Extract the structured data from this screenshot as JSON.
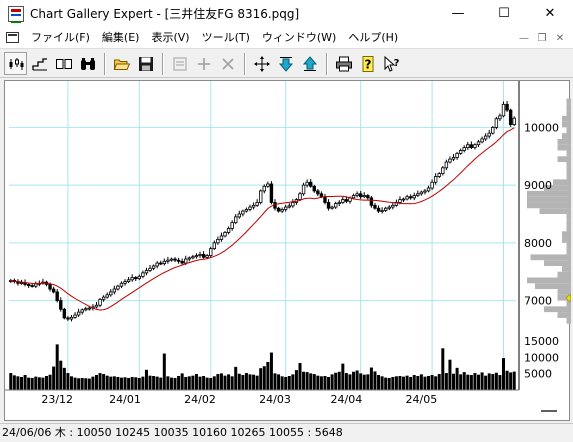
{
  "window": {
    "title": "Chart Gallery Expert - [三井住友FG 8316.pqg]",
    "minimize_glyph": "—",
    "maximize_glyph": "☐",
    "close_glyph": "✕"
  },
  "menu": {
    "items": [
      "ファイル(F)",
      "編集(E)",
      "表示(V)",
      "ツール(T)",
      "ウィンドウ(W)",
      "ヘルプ(H)"
    ],
    "mdi_minimize": "—",
    "mdi_restore": "❐",
    "mdi_close": "✕"
  },
  "toolbar": {
    "buttons": [
      {
        "name": "candlestick-button",
        "icon": "candlestick-icon"
      },
      {
        "name": "step-line-button",
        "icon": "step-line-icon"
      },
      {
        "name": "dual-pane-button",
        "icon": "dual-pane-icon"
      },
      {
        "name": "binoculars-button",
        "icon": "binoculars-icon"
      },
      {
        "name": "open-button",
        "icon": "folder-icon"
      },
      {
        "name": "save-button",
        "icon": "floppy-icon"
      },
      {
        "name": "properties-button",
        "icon": "properties-icon"
      },
      {
        "name": "add-button",
        "icon": "plus-icon"
      },
      {
        "name": "delete-button",
        "icon": "cross-icon"
      },
      {
        "name": "move-button",
        "icon": "move-icon"
      },
      {
        "name": "move-down-button",
        "icon": "arrow-down-icon"
      },
      {
        "name": "move-up-button",
        "icon": "arrow-up-icon"
      },
      {
        "name": "print-button",
        "icon": "printer-icon"
      },
      {
        "name": "help-button",
        "icon": "question-icon"
      },
      {
        "name": "context-help-button",
        "icon": "pointer-question-icon"
      }
    ]
  },
  "status": {
    "text": "24/06/06 木 : 10050 10245 10035 10160  10265 10055 : 5648"
  },
  "colors": {
    "grid": "#a8e6f0",
    "candle": "#000000",
    "ma_line": "#c00000",
    "volume": "#000000",
    "current_marker": "#e6e000"
  },
  "chart_data": {
    "type": "candlestick",
    "price_axis": {
      "ticks": [
        7000,
        8000,
        9000,
        10000
      ],
      "tick_labels": [
        "7000",
        "8000",
        "9000",
        "10000"
      ],
      "ylim": [
        6300,
        10700
      ]
    },
    "volume_axis": {
      "ticks": [
        5000,
        10000,
        15000
      ],
      "tick_labels": [
        "5000",
        "10000",
        "15000"
      ],
      "ylim": [
        0,
        17500
      ]
    },
    "x_ticks": [
      "23/12",
      "24/01",
      "24/02",
      "24/03",
      "24/04",
      "24/05"
    ],
    "series": [
      {
        "kind": "candles",
        "close": [
          7350,
          7330,
          7300,
          7310,
          7280,
          7260,
          7250,
          7290,
          7300,
          7320,
          7280,
          7200,
          7150,
          7000,
          6850,
          6700,
          6680,
          6710,
          6750,
          6800,
          6840,
          6860,
          6870,
          6890,
          6920,
          7020,
          7060,
          7100,
          7150,
          7200,
          7250,
          7300,
          7330,
          7360,
          7400,
          7380,
          7420,
          7480,
          7520,
          7560,
          7600,
          7650,
          7640,
          7680,
          7700,
          7720,
          7700,
          7680,
          7650,
          7720,
          7740,
          7760,
          7780,
          7800,
          7750,
          7780,
          7900,
          8000,
          8060,
          8120,
          8180,
          8250,
          8350,
          8450,
          8500,
          8550,
          8580,
          8620,
          8650,
          8700,
          8900,
          8980,
          9020,
          8700,
          8600,
          8550,
          8580,
          8620,
          8640,
          8700,
          8750,
          8850,
          9000,
          9050,
          8980,
          8900,
          8850,
          8800,
          8700,
          8600,
          8620,
          8680,
          8700,
          8750,
          8720,
          8780,
          8820,
          8850,
          8800,
          8820,
          8780,
          8650,
          8600,
          8550,
          8560,
          8600,
          8620,
          8650,
          8700,
          8750,
          8760,
          8800,
          8780,
          8820,
          8850,
          8880,
          8900,
          8950,
          9050,
          9150,
          9200,
          9300,
          9400,
          9450,
          9480,
          9550,
          9600,
          9650,
          9700,
          9650,
          9700,
          9750,
          9800,
          9850,
          9900,
          10000,
          10150,
          10200,
          10400,
          10300,
          10050,
          10160
        ],
        "volume": [
          5200,
          4500,
          4200,
          4000,
          4600,
          3800,
          3700,
          4100,
          3900,
          3800,
          4300,
          4700,
          7200,
          14000,
          9000,
          6800,
          5200,
          4200,
          3800,
          3600,
          3700,
          3600,
          3500,
          4100,
          4600,
          5200,
          4900,
          4400,
          4100,
          4200,
          4000,
          3800,
          3900,
          3700,
          4000,
          3900,
          3700,
          4100,
          6200,
          4400,
          4300,
          4100,
          3800,
          11200,
          4200,
          3800,
          3700,
          4300,
          5100,
          4000,
          4200,
          4400,
          4900,
          4100,
          4300,
          3800,
          3700,
          4200,
          4900,
          5100,
          4400,
          4800,
          4200,
          7100,
          5000,
          4600,
          5200,
          4800,
          4700,
          4400,
          6700,
          7300,
          8600,
          11500,
          5100,
          4800,
          4200,
          4000,
          4300,
          4800,
          6100,
          8300,
          5600,
          5500,
          5100,
          4900,
          4400,
          4200,
          4300,
          4000,
          4800,
          5300,
          5600,
          8100,
          5200,
          4800,
          5600,
          6000,
          5100,
          4700,
          4800,
          6900,
          5700,
          4600,
          4200,
          3800,
          3700,
          4000,
          4200,
          4300,
          4100,
          4400,
          4000,
          4600,
          4300,
          4800,
          4100,
          4300,
          4600,
          4200,
          4900,
          12800,
          5200,
          9300,
          5000,
          6800,
          4800,
          5500,
          4700,
          4600,
          5200,
          4700,
          5400,
          4400,
          5100,
          4900,
          5300,
          4600,
          9800,
          5900,
          5400,
          5648
        ]
      },
      {
        "kind": "moving_average",
        "color": "#c00000"
      }
    ]
  }
}
